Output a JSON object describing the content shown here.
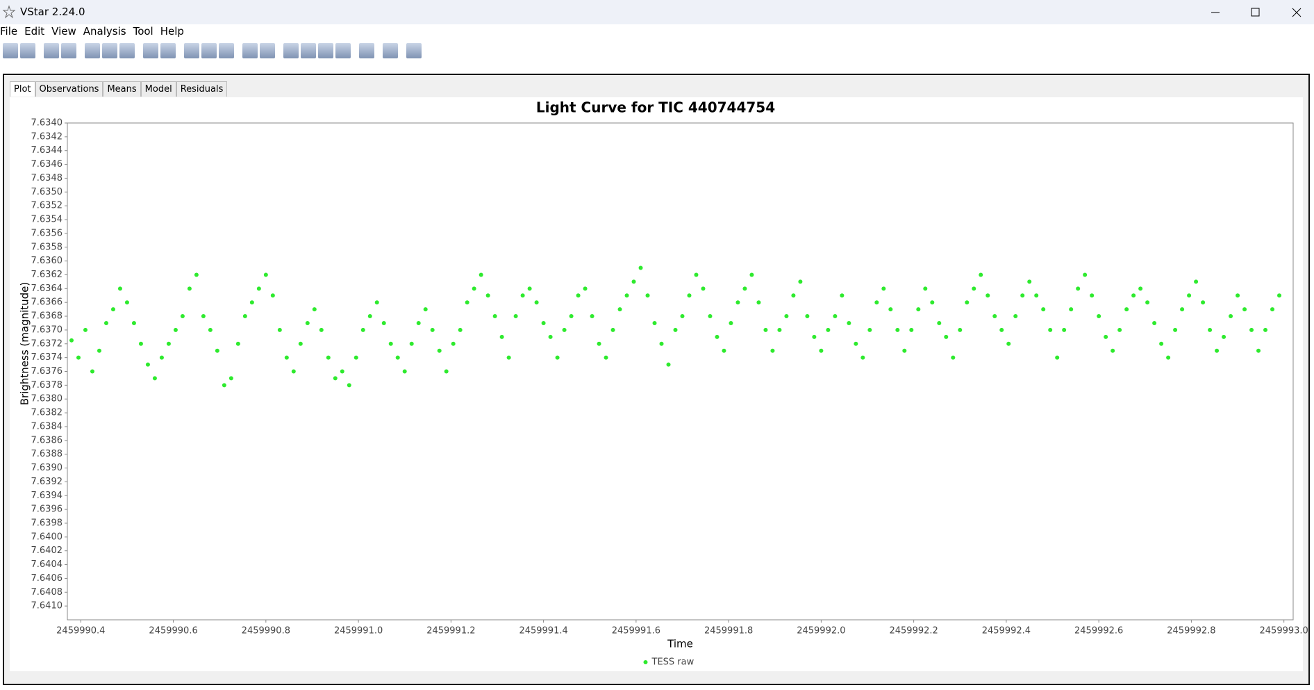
{
  "window": {
    "title": "VStar 2.24.0"
  },
  "menu": [
    "File",
    "Edit",
    "View",
    "Analysis",
    "Tool",
    "Help"
  ],
  "tabs": [
    "Plot",
    "Observations",
    "Means",
    "Model",
    "Residuals"
  ],
  "chart_data": {
    "type": "scatter",
    "title": "Light Curve for TIC 440744754",
    "x_label": "Time",
    "y_label": "Brightness (magnitude)",
    "xlim": [
      2459990.371,
      2459993.02
    ],
    "ylim": [
      7.634,
      7.6412
    ],
    "y_inverted": true,
    "grid": false,
    "legend": "bottom",
    "xticks": [
      2459990.4,
      2459990.6,
      2459990.8,
      {
        "value": 2459991,
        "label": "2459991.0"
      },
      2459991.2,
      2459991.4,
      2459991.6,
      2459991.8,
      {
        "value": 2459992,
        "label": "2459992.0"
      },
      2459992.2,
      2459992.4,
      2459992.6,
      2459992.8,
      {
        "value": 2459993,
        "label": "2459993.0"
      }
    ],
    "yticks": [
      {
        "value": 7.634,
        "label": "7.6340"
      },
      7.6342,
      7.6344,
      7.6346,
      7.6348,
      {
        "value": 7.635,
        "label": "7.6350"
      },
      7.6352,
      7.6354,
      7.6356,
      7.6358,
      {
        "value": 7.636,
        "label": "7.6360"
      },
      7.6362,
      7.6364,
      7.6366,
      7.6368,
      {
        "value": 7.637,
        "label": "7.6370"
      },
      7.6372,
      7.6374,
      7.6376,
      7.6378,
      {
        "value": 7.638,
        "label": "7.6380"
      },
      7.6382,
      7.6384,
      7.6386,
      7.6388,
      {
        "value": 7.639,
        "label": "7.6390"
      },
      7.6392,
      7.6394,
      7.6396,
      7.6398,
      {
        "value": 7.64,
        "label": "7.6400"
      },
      7.6402,
      7.6404,
      7.6406,
      7.6408,
      {
        "value": 7.641,
        "label": "7.6410"
      }
    ],
    "series": [
      {
        "name": "TESS raw",
        "color": "#2eea2e",
        "x": [
          2459990.38,
          2459990.395,
          2459990.41,
          2459990.425,
          2459990.44,
          2459990.455,
          2459990.47,
          2459990.485,
          2459990.5,
          2459990.515,
          2459990.53,
          2459990.545,
          2459990.56,
          2459990.575,
          2459990.59,
          2459990.605,
          2459990.62,
          2459990.635,
          2459990.65,
          2459990.665,
          2459990.68,
          2459990.695,
          2459990.71,
          2459990.725,
          2459990.74,
          2459990.755,
          2459990.77,
          2459990.785,
          2459990.8,
          2459990.815,
          2459990.83,
          2459990.845,
          2459990.86,
          2459990.875,
          2459990.89,
          2459990.905,
          2459990.92,
          2459990.935,
          2459990.95,
          2459990.965,
          2459990.98,
          2459990.995,
          2459991.01,
          2459991.025,
          2459991.04,
          2459991.055,
          2459991.07,
          2459991.085,
          2459991.1,
          2459991.115,
          2459991.13,
          2459991.145,
          2459991.16,
          2459991.175,
          2459991.19,
          2459991.205,
          2459991.22,
          2459991.235,
          2459991.25,
          2459991.265,
          2459991.28,
          2459991.295,
          2459991.31,
          2459991.325,
          2459991.34,
          2459991.355,
          2459991.37,
          2459991.385,
          2459991.4,
          2459991.415,
          2459991.43,
          2459991.445,
          2459991.46,
          2459991.475,
          2459991.49,
          2459991.505,
          2459991.52,
          2459991.535,
          2459991.55,
          2459991.565,
          2459991.58,
          2459991.595,
          2459991.61,
          2459991.625,
          2459991.64,
          2459991.655,
          2459991.67,
          2459991.685,
          2459991.7,
          2459991.715,
          2459991.73,
          2459991.745,
          2459991.76,
          2459991.775,
          2459991.79,
          2459991.805,
          2459991.82,
          2459991.835,
          2459991.85,
          2459991.865,
          2459991.88,
          2459991.895,
          2459991.91,
          2459991.925,
          2459991.94,
          2459991.955,
          2459991.97,
          2459991.985,
          2459992.0,
          2459992.015,
          2459992.03,
          2459992.045,
          2459992.06,
          2459992.075,
          2459992.09,
          2459992.105,
          2459992.12,
          2459992.135,
          2459992.15,
          2459992.165,
          2459992.18,
          2459992.195,
          2459992.21,
          2459992.225,
          2459992.24,
          2459992.255,
          2459992.27,
          2459992.285,
          2459992.3,
          2459992.315,
          2459992.33,
          2459992.345,
          2459992.36,
          2459992.375,
          2459992.39,
          2459992.405,
          2459992.42,
          2459992.435,
          2459992.45,
          2459992.465,
          2459992.48,
          2459992.495,
          2459992.51,
          2459992.525,
          2459992.54,
          2459992.555,
          2459992.57,
          2459992.585,
          2459992.6,
          2459992.615,
          2459992.63,
          2459992.645,
          2459992.66,
          2459992.675,
          2459992.69,
          2459992.705,
          2459992.72,
          2459992.735,
          2459992.75,
          2459992.765,
          2459992.78,
          2459992.795,
          2459992.81,
          2459992.825,
          2459992.84,
          2459992.855,
          2459992.87,
          2459992.885,
          2459992.9,
          2459992.915,
          2459992.93,
          2459992.945,
          2459992.96,
          2459992.975,
          2459992.99
        ],
        "values": [
          7.63715,
          7.6374,
          7.637,
          7.6376,
          7.6373,
          7.6369,
          7.6367,
          7.6364,
          7.6366,
          7.6369,
          7.6372,
          7.6375,
          7.6377,
          7.6374,
          7.6372,
          7.637,
          7.6368,
          7.6364,
          7.6362,
          7.6368,
          7.637,
          7.6373,
          7.6378,
          7.6377,
          7.6372,
          7.6368,
          7.6366,
          7.6364,
          7.6362,
          7.6365,
          7.637,
          7.6374,
          7.6376,
          7.6372,
          7.6369,
          7.6367,
          7.637,
          7.6374,
          7.6377,
          7.6376,
          7.6378,
          7.6374,
          7.637,
          7.6368,
          7.6366,
          7.6369,
          7.6372,
          7.6374,
          7.6376,
          7.6372,
          7.6369,
          7.6367,
          7.637,
          7.6373,
          7.6376,
          7.6372,
          7.637,
          7.6366,
          7.6364,
          7.6362,
          7.6365,
          7.6368,
          7.6371,
          7.6374,
          7.6368,
          7.6365,
          7.6364,
          7.6366,
          7.6369,
          7.6371,
          7.6374,
          7.637,
          7.6368,
          7.6365,
          7.6364,
          7.6368,
          7.6372,
          7.6374,
          7.637,
          7.6367,
          7.6365,
          7.6363,
          7.6361,
          7.6365,
          7.6369,
          7.6372,
          7.6375,
          7.637,
          7.6368,
          7.6365,
          7.6362,
          7.6364,
          7.6368,
          7.6371,
          7.6373,
          7.6369,
          7.6366,
          7.6364,
          7.6362,
          7.6366,
          7.637,
          7.6373,
          7.637,
          7.6368,
          7.6365,
          7.6363,
          7.6368,
          7.6371,
          7.6373,
          7.637,
          7.6368,
          7.6365,
          7.6369,
          7.6372,
          7.6374,
          7.637,
          7.6366,
          7.6364,
          7.6367,
          7.637,
          7.6373,
          7.637,
          7.6367,
          7.6364,
          7.6366,
          7.6369,
          7.6371,
          7.6374,
          7.637,
          7.6366,
          7.6364,
          7.6362,
          7.6365,
          7.6368,
          7.637,
          7.6372,
          7.6368,
          7.6365,
          7.6363,
          7.6365,
          7.6367,
          7.637,
          7.6374,
          7.637,
          7.6367,
          7.6364,
          7.6362,
          7.6365,
          7.6368,
          7.6371,
          7.6373,
          7.637,
          7.6367,
          7.6365,
          7.6364,
          7.6366,
          7.6369,
          7.6372,
          7.6374,
          7.637,
          7.6367,
          7.6365,
          7.6363,
          7.6366,
          7.637,
          7.6373,
          7.6371,
          7.6368,
          7.6365,
          7.6367,
          7.637,
          7.6373,
          7.637,
          7.6367,
          7.6365
        ]
      }
    ]
  }
}
